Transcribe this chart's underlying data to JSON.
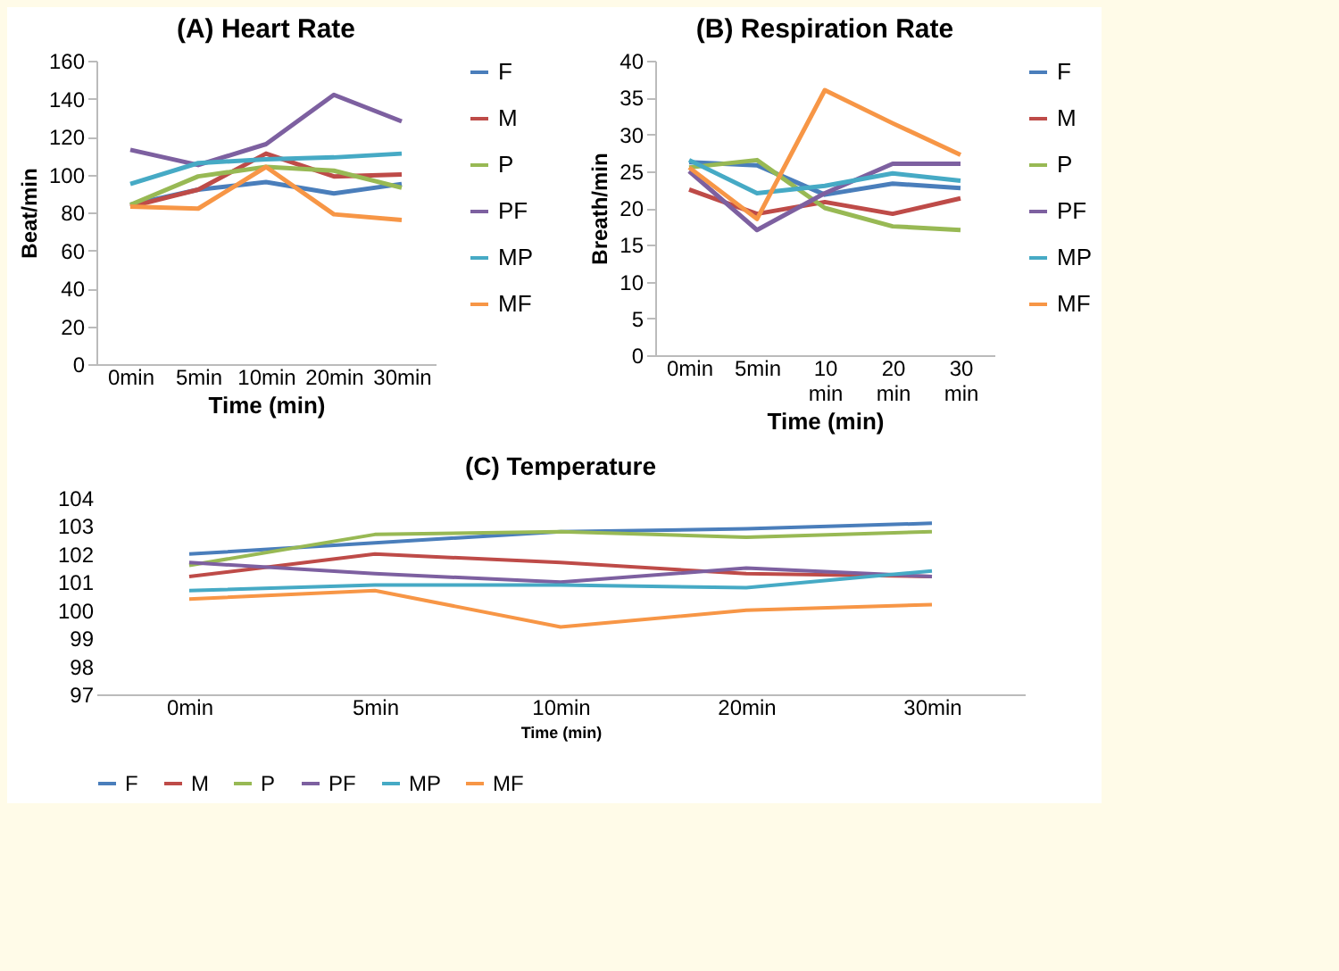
{
  "chart_data": [
    {
      "type": "line",
      "title": "(A) Heart Rate",
      "xlabel": "Time (min)",
      "ylabel": "Beat/min",
      "categories": [
        "0min",
        "5min",
        "10min",
        "20min",
        "30min"
      ],
      "ylim": [
        0,
        160
      ],
      "yticks": [
        0,
        20,
        40,
        60,
        80,
        100,
        120,
        140,
        160
      ],
      "legend": "right",
      "series": [
        {
          "name": "F",
          "color": "#4a7ebb",
          "values": [
            84,
            92,
            96,
            90,
            95
          ]
        },
        {
          "name": "M",
          "color": "#be4b48",
          "values": [
            83,
            92,
            111,
            99,
            100
          ]
        },
        {
          "name": "P",
          "color": "#98b954",
          "values": [
            84,
            99,
            104,
            102,
            93
          ]
        },
        {
          "name": "PF",
          "color": "#7d60a0",
          "values": [
            113,
            105,
            116,
            142,
            128
          ]
        },
        {
          "name": "MP",
          "color": "#46aac5",
          "values": [
            95,
            106,
            108,
            109,
            111
          ]
        },
        {
          "name": "MF",
          "color": "#f79646",
          "values": [
            83,
            82,
            104,
            79,
            76
          ]
        }
      ]
    },
    {
      "type": "line",
      "title": "(B) Respiration Rate",
      "xlabel": "Time (min)",
      "ylabel": "Breath/min",
      "categories": [
        "0min",
        "5min",
        "10 min",
        "20 min",
        "30 min"
      ],
      "ylim": [
        0,
        40
      ],
      "yticks": [
        0,
        5,
        10,
        15,
        20,
        25,
        30,
        35,
        40
      ],
      "legend": "right",
      "series": [
        {
          "name": "F",
          "color": "#4a7ebb",
          "values": [
            26.2,
            25.8,
            21.8,
            23.3,
            22.7
          ]
        },
        {
          "name": "M",
          "color": "#be4b48",
          "values": [
            22.5,
            19.2,
            20.8,
            19.2,
            21.3
          ]
        },
        {
          "name": "P",
          "color": "#98b954",
          "values": [
            25.5,
            26.5,
            20,
            17.5,
            17
          ]
        },
        {
          "name": "PF",
          "color": "#7d60a0",
          "values": [
            25,
            17,
            22,
            26,
            26
          ]
        },
        {
          "name": "MP",
          "color": "#46aac5",
          "values": [
            26.5,
            22,
            23,
            24.7,
            23.7
          ]
        },
        {
          "name": "MF",
          "color": "#f79646",
          "values": [
            25.5,
            18.5,
            36,
            31.5,
            27.2
          ]
        }
      ]
    },
    {
      "type": "line",
      "title": "(C) Temperature",
      "xlabel": "Time (min)",
      "categories": [
        "0min",
        "5min",
        "10min",
        "20min",
        "30min"
      ],
      "ylim": [
        97,
        104
      ],
      "yticks": [
        97,
        98,
        99,
        100,
        101,
        102,
        103,
        104
      ],
      "legend": "bottom",
      "series": [
        {
          "name": "F",
          "color": "#4a7ebb",
          "values": [
            102.0,
            102.4,
            102.8,
            102.9,
            103.1
          ]
        },
        {
          "name": "M",
          "color": "#be4b48",
          "values": [
            101.2,
            102.0,
            101.7,
            101.3,
            101.2
          ]
        },
        {
          "name": "P",
          "color": "#98b954",
          "values": [
            101.6,
            102.7,
            102.8,
            102.6,
            102.8
          ]
        },
        {
          "name": "PF",
          "color": "#7d60a0",
          "values": [
            101.7,
            101.3,
            101.0,
            101.5,
            101.2
          ]
        },
        {
          "name": "MP",
          "color": "#46aac5",
          "values": [
            100.7,
            100.9,
            100.9,
            100.8,
            101.4
          ]
        },
        {
          "name": "MF",
          "color": "#f79646",
          "values": [
            100.4,
            100.7,
            99.4,
            100.0,
            100.2
          ]
        }
      ]
    }
  ]
}
